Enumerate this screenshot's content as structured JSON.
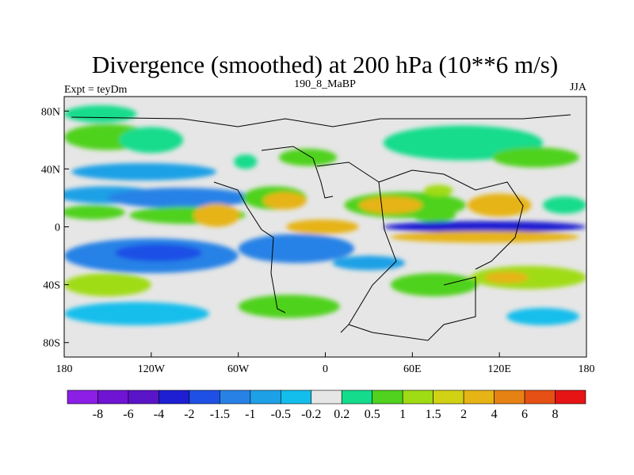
{
  "chart_data": {
    "type": "heatmap",
    "title": "Divergence (smoothed) at 200 hPa (10**6 m/s)",
    "left_label": "Expt = teyDm",
    "center_label": "190_8_MaBP",
    "right_label": "JJA",
    "x_ticks": [
      {
        "value": -180,
        "label": "180"
      },
      {
        "value": -120,
        "label": "120W"
      },
      {
        "value": -60,
        "label": "60W"
      },
      {
        "value": 0,
        "label": "0"
      },
      {
        "value": 60,
        "label": "60E"
      },
      {
        "value": 120,
        "label": "120E"
      },
      {
        "value": 180,
        "label": "180"
      }
    ],
    "y_ticks": [
      {
        "value": 80,
        "label": "80N"
      },
      {
        "value": 40,
        "label": "40N"
      },
      {
        "value": 0,
        "label": "0"
      },
      {
        "value": -40,
        "label": "40S"
      },
      {
        "value": -80,
        "label": "80S"
      }
    ],
    "xlim": [
      -180,
      180
    ],
    "ylim": [
      -90,
      90
    ],
    "colorbar": {
      "colors": [
        "#8c1ee6",
        "#6e14d2",
        "#5a14c8",
        "#1e1ed2",
        "#1e50e6",
        "#2882e6",
        "#1ea0e6",
        "#14beec",
        "#e6e6e6",
        "#14dc8c",
        "#50d21e",
        "#a0dc14",
        "#d2d214",
        "#e6b414",
        "#e68214",
        "#e65014",
        "#e61414"
      ],
      "levels": [
        "-8",
        "-6",
        "-4",
        "-2",
        "-1.5",
        "-1",
        "-0.5",
        "-0.2",
        "0.2",
        "0.5",
        "1",
        "1.5",
        "2",
        "4",
        "6",
        "8"
      ]
    },
    "regions": [
      {
        "lon": -155,
        "lat": 78,
        "rlon": 25,
        "rlat": 6,
        "level": 9
      },
      {
        "lon": -150,
        "lat": 62,
        "rlon": 30,
        "rlat": 9,
        "level": 10
      },
      {
        "lon": -120,
        "lat": 60,
        "rlon": 22,
        "rlat": 9,
        "level": 9
      },
      {
        "lon": -125,
        "lat": 38,
        "rlon": 50,
        "rlat": 6,
        "level": 6
      },
      {
        "lon": -150,
        "lat": 22,
        "rlon": 35,
        "rlat": 6,
        "level": 6
      },
      {
        "lon": -100,
        "lat": 20,
        "rlon": 50,
        "rlat": 7,
        "level": 5
      },
      {
        "lon": -160,
        "lat": 10,
        "rlon": 22,
        "rlat": 5,
        "level": 10
      },
      {
        "lon": -95,
        "lat": 8,
        "rlon": 40,
        "rlat": 6,
        "level": 10
      },
      {
        "lon": -75,
        "lat": 8,
        "rlon": 16,
        "rlat": 8,
        "level": 13
      },
      {
        "lon": -35,
        "lat": 20,
        "rlon": 22,
        "rlat": 8,
        "level": 10
      },
      {
        "lon": -28,
        "lat": 18,
        "rlon": 15,
        "rlat": 6,
        "level": 13
      },
      {
        "lon": -12,
        "lat": 48,
        "rlon": 20,
        "rlat": 6,
        "level": 10
      },
      {
        "lon": -55,
        "lat": 45,
        "rlon": 8,
        "rlat": 5,
        "level": 9
      },
      {
        "lon": -2,
        "lat": 0,
        "rlon": 25,
        "rlat": 5,
        "level": 13
      },
      {
        "lon": 55,
        "lat": 15,
        "rlon": 42,
        "rlat": 9,
        "level": 10
      },
      {
        "lon": 45,
        "lat": 15,
        "rlon": 22,
        "rlat": 6,
        "level": 13
      },
      {
        "lon": 75,
        "lat": 8,
        "rlon": 15,
        "rlat": 5,
        "level": 10
      },
      {
        "lon": 78,
        "lat": 25,
        "rlon": 10,
        "rlat": 4,
        "level": 11
      },
      {
        "lon": 120,
        "lat": 15,
        "rlon": 22,
        "rlat": 8,
        "level": 13
      },
      {
        "lon": 95,
        "lat": 58,
        "rlon": 55,
        "rlat": 12,
        "level": 9
      },
      {
        "lon": 145,
        "lat": 48,
        "rlon": 30,
        "rlat": 7,
        "level": 10
      },
      {
        "lon": 165,
        "lat": 15,
        "rlon": 15,
        "rlat": 6,
        "level": 9
      },
      {
        "lon": -120,
        "lat": -20,
        "rlon": 60,
        "rlat": 12,
        "level": 5
      },
      {
        "lon": -115,
        "lat": -18,
        "rlon": 30,
        "rlat": 6,
        "level": 4
      },
      {
        "lon": -20,
        "lat": -15,
        "rlon": 40,
        "rlat": 10,
        "level": 5
      },
      {
        "lon": 110,
        "lat": 0,
        "rlon": 70,
        "rlat": 4,
        "level": 3
      },
      {
        "lon": 110,
        "lat": -7,
        "rlon": 65,
        "rlat": 4,
        "level": 13
      },
      {
        "lon": 30,
        "lat": -25,
        "rlon": 25,
        "rlat": 5,
        "level": 6
      },
      {
        "lon": -150,
        "lat": -40,
        "rlon": 30,
        "rlat": 8,
        "level": 11
      },
      {
        "lon": 140,
        "lat": -35,
        "rlon": 40,
        "rlat": 8,
        "level": 11
      },
      {
        "lon": 125,
        "lat": -35,
        "rlon": 15,
        "rlat": 4,
        "level": 13
      },
      {
        "lon": 75,
        "lat": -40,
        "rlon": 30,
        "rlat": 8,
        "level": 10
      },
      {
        "lon": -130,
        "lat": -60,
        "rlon": 50,
        "rlat": 8,
        "level": 7
      },
      {
        "lon": -25,
        "lat": -55,
        "rlon": 35,
        "rlat": 8,
        "level": 10
      },
      {
        "lon": 150,
        "lat": -62,
        "rlon": 25,
        "rlat": 6,
        "level": 7
      }
    ]
  }
}
